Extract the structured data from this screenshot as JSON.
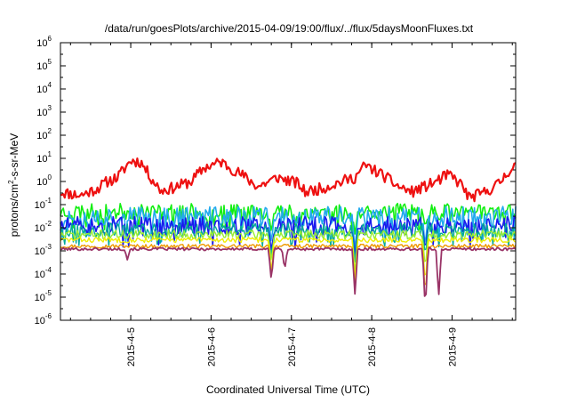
{
  "chart_data": {
    "type": "line",
    "title": "/data/run/goesPlots/archive/2015-04-09/19:00/flux/../flux/5daysMoonFluxes.txt",
    "xlabel": "Coordinated Universal Time (UTC)",
    "ylabel": {
      "base": "protons/cm",
      "sup": "2",
      "rest": "-s-sr-MeV"
    },
    "y_scale": "log",
    "ylim": [
      1e-06,
      1000000.0
    ],
    "xlim": [
      "2015-04-04 03:00",
      "2015-04-09 19:00"
    ],
    "y_ticks": [
      {
        "value": 1e-06,
        "base": "10",
        "exp": "-6"
      },
      {
        "value": 1e-05,
        "base": "10",
        "exp": "-5"
      },
      {
        "value": 0.0001,
        "base": "10",
        "exp": "-4"
      },
      {
        "value": 0.001,
        "base": "10",
        "exp": "-3"
      },
      {
        "value": 0.01,
        "base": "10",
        "exp": "-2"
      },
      {
        "value": 0.1,
        "base": "10",
        "exp": "-1"
      },
      {
        "value": 1,
        "base": "10",
        "exp": "0"
      },
      {
        "value": 10,
        "base": "10",
        "exp": "1"
      },
      {
        "value": 100,
        "base": "10",
        "exp": "2"
      },
      {
        "value": 1000,
        "base": "10",
        "exp": "3"
      },
      {
        "value": 10000,
        "base": "10",
        "exp": "4"
      },
      {
        "value": 100000,
        "base": "10",
        "exp": "5"
      },
      {
        "value": 1000000,
        "base": "10",
        "exp": "6"
      }
    ],
    "x_ticks": [
      {
        "value": "2015-04-05 00:00",
        "label": "2015-4-5"
      },
      {
        "value": "2015-04-06 00:00",
        "label": "2015-4-6"
      },
      {
        "value": "2015-04-07 00:00",
        "label": "2015-4-7"
      },
      {
        "value": "2015-04-08 00:00",
        "label": "2015-4-8"
      },
      {
        "value": "2015-04-09 00:00",
        "label": "2015-4-9"
      }
    ],
    "grid": false,
    "legend": "none",
    "series": [
      {
        "color": "#ee1111",
        "width": 2.2,
        "noise": 0.25,
        "seed": 11,
        "points": [
          [
            "2015-04-04 03:00",
            0.35
          ],
          [
            "2015-04-04 09:00",
            0.25
          ],
          [
            "2015-04-04 14:00",
            0.5
          ],
          [
            "2015-04-04 17:00",
            1.0
          ],
          [
            "2015-04-04 20:00",
            1.5
          ],
          [
            "2015-04-05 00:00",
            8.0
          ],
          [
            "2015-04-05 03:00",
            7.0
          ],
          [
            "2015-04-05 06:00",
            1.5
          ],
          [
            "2015-04-05 09:00",
            0.4
          ],
          [
            "2015-04-05 12:00",
            0.5
          ],
          [
            "2015-04-05 18:00",
            1.0
          ],
          [
            "2015-04-05 22:00",
            4.0
          ],
          [
            "2015-04-06 03:00",
            7.0
          ],
          [
            "2015-04-06 09:00",
            2.0
          ],
          [
            "2015-04-06 14:00",
            0.6
          ],
          [
            "2015-04-06 20:00",
            1.5
          ],
          [
            "2015-04-07 02:00",
            0.8
          ],
          [
            "2015-04-07 04:00",
            0.35
          ],
          [
            "2015-04-07 09:00",
            0.5
          ],
          [
            "2015-04-07 15:00",
            1.0
          ],
          [
            "2015-04-07 19:00",
            1.5
          ],
          [
            "2015-04-07 22:00",
            5.0
          ],
          [
            "2015-04-08 03:00",
            2.0
          ],
          [
            "2015-04-08 08:00",
            0.6
          ],
          [
            "2015-04-08 12:00",
            0.35
          ],
          [
            "2015-04-08 18:00",
            0.8
          ],
          [
            "2015-04-08 23:00",
            2.0
          ],
          [
            "2015-04-09 03:00",
            0.7
          ],
          [
            "2015-04-09 05:00",
            0.2
          ],
          [
            "2015-04-09 09:00",
            0.3
          ],
          [
            "2015-04-09 14:00",
            0.8
          ],
          [
            "2015-04-09 17:00",
            3.0
          ],
          [
            "2015-04-09 19:00",
            5.0
          ]
        ]
      },
      {
        "color": "#11ee11",
        "width": 1.6,
        "noise": 0.35,
        "seed": 23,
        "points": [
          [
            "2015-04-04 03:00",
            0.05
          ],
          [
            "2015-04-09 19:00",
            0.05
          ]
        ],
        "dips": [
          [
            "2015-04-06 18:00",
            0.006
          ],
          [
            "2015-04-07 19:00",
            0.005
          ],
          [
            "2015-04-08 16:00",
            0.01
          ]
        ]
      },
      {
        "color": "#22aaee",
        "width": 1.6,
        "noise": 0.45,
        "seed": 37,
        "points": [
          [
            "2015-04-04 03:00",
            0.03
          ],
          [
            "2015-04-09 19:00",
            0.03
          ]
        ],
        "dips": [
          [
            "2015-04-06 18:00",
            0.002
          ],
          [
            "2015-04-07 19:00",
            0.001
          ],
          [
            "2015-04-08 16:00",
            0.002
          ]
        ]
      },
      {
        "color": "#1a1aee",
        "width": 1.6,
        "noise": 0.4,
        "seed": 51,
        "points": [
          [
            "2015-04-04 03:00",
            0.012
          ],
          [
            "2015-04-09 19:00",
            0.012
          ]
        ],
        "dips": [
          [
            "2015-04-06 18:00",
            0.0008
          ],
          [
            "2015-04-07 19:00",
            0.0005
          ],
          [
            "2015-04-08 16:00",
            0.001
          ]
        ]
      },
      {
        "color": "#00aa99",
        "width": 1.4,
        "noise": 0.3,
        "seed": 67,
        "points": [
          [
            "2015-04-04 03:00",
            0.008
          ],
          [
            "2015-04-09 19:00",
            0.008
          ]
        ],
        "dips": [
          [
            "2015-04-06 18:00",
            0.0005
          ],
          [
            "2015-04-07 19:00",
            0.0003
          ],
          [
            "2015-04-08 16:00",
            0.0006
          ]
        ]
      },
      {
        "color": "#99ee33",
        "width": 1.4,
        "noise": 0.2,
        "seed": 71,
        "points": [
          [
            "2015-04-04 03:00",
            0.005
          ],
          [
            "2015-04-09 19:00",
            0.005
          ]
        ],
        "dips": [
          [
            "2015-04-06 18:00",
            0.0003
          ],
          [
            "2015-04-07 19:00",
            0.0001
          ],
          [
            "2015-04-08 16:00",
            0.00015
          ]
        ]
      },
      {
        "color": "#eeee00",
        "width": 1.4,
        "noise": 0.12,
        "seed": 83,
        "points": [
          [
            "2015-04-04 03:00",
            0.003
          ],
          [
            "2015-04-09 19:00",
            0.003
          ]
        ],
        "dips": [
          [
            "2015-04-06 18:00",
            0.0001
          ],
          [
            "2015-04-07 19:00",
            5e-05
          ],
          [
            "2015-04-08 16:00",
            3e-05
          ]
        ]
      },
      {
        "color": "#ee9900",
        "width": 1.4,
        "noise": 0.08,
        "seed": 97,
        "points": [
          [
            "2015-04-04 03:00",
            0.0016
          ],
          [
            "2015-04-09 19:00",
            0.0016
          ]
        ],
        "dips": [
          [
            "2015-04-06 18:00",
            6e-05
          ],
          [
            "2015-04-07 19:00",
            2e-05
          ],
          [
            "2015-04-08 16:00",
            1e-05
          ]
        ]
      },
      {
        "color": "#993366",
        "width": 1.8,
        "noise": 0.06,
        "seed": 101,
        "points": [
          [
            "2015-04-04 03:00",
            0.0012
          ],
          [
            "2015-04-09 19:00",
            0.0012
          ]
        ],
        "dips": [
          [
            "2015-04-04 23:00",
            0.0004
          ],
          [
            "2015-04-06 18:00",
            5e-05
          ],
          [
            "2015-04-06 22:00",
            0.00015
          ],
          [
            "2015-04-07 19:00",
            1.2e-05
          ],
          [
            "2015-04-08 16:00",
            2.5e-06
          ],
          [
            "2015-04-08 20:00",
            1e-05
          ]
        ]
      }
    ]
  }
}
